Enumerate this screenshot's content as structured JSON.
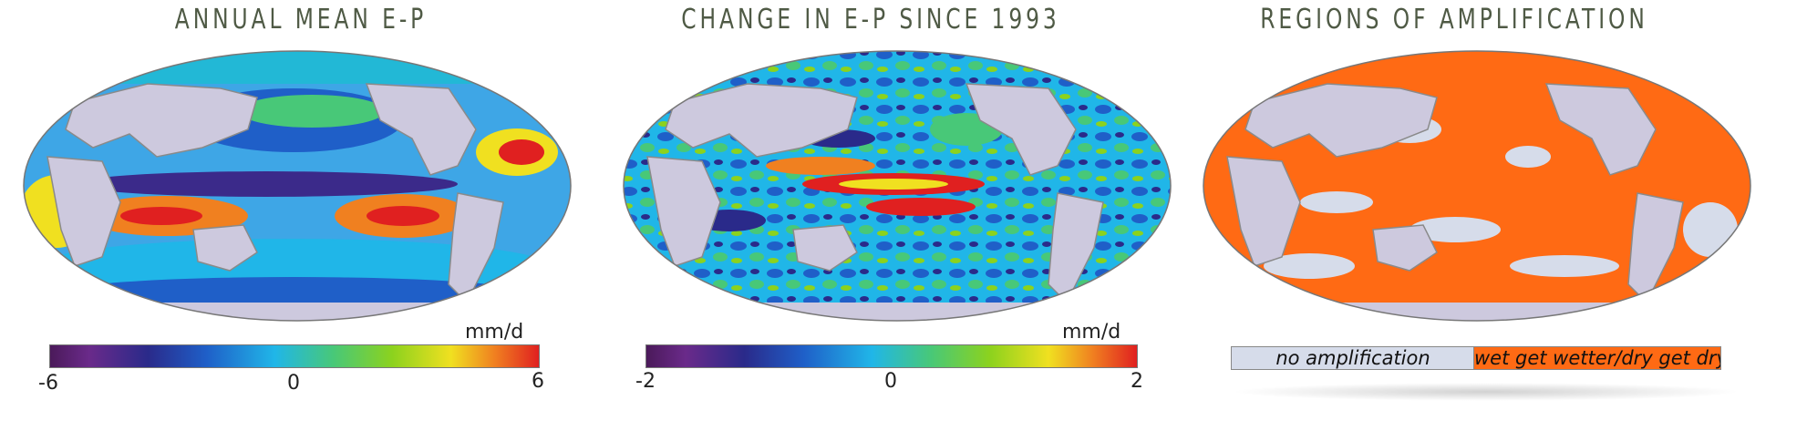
{
  "panels": [
    {
      "title": "ANNUAL MEAN E-P",
      "colorbar": {
        "unit": "mm/d",
        "min_label": "-6",
        "mid_label": "0",
        "max_label": "6",
        "min": -6,
        "max": 6
      }
    },
    {
      "title": "CHANGE IN E-P SINCE 1993",
      "colorbar": {
        "unit": "mm/d",
        "min_label": "-2",
        "mid_label": "0",
        "max_label": "2",
        "min": -2,
        "max": 2
      }
    },
    {
      "title": "REGIONS OF AMPLIFICATION",
      "legend": {
        "items": [
          {
            "label": "no amplification",
            "color": "#d6dcea"
          },
          {
            "label": "wet get wetter/dry get dryer",
            "color": "#ff6a14"
          }
        ]
      }
    }
  ],
  "colors": {
    "land": "#cdc9de",
    "coast": "#8a8a8a",
    "title": "#4f5a45",
    "amplification": "#ff6a14",
    "no_amplification": "#d6dcea"
  }
}
